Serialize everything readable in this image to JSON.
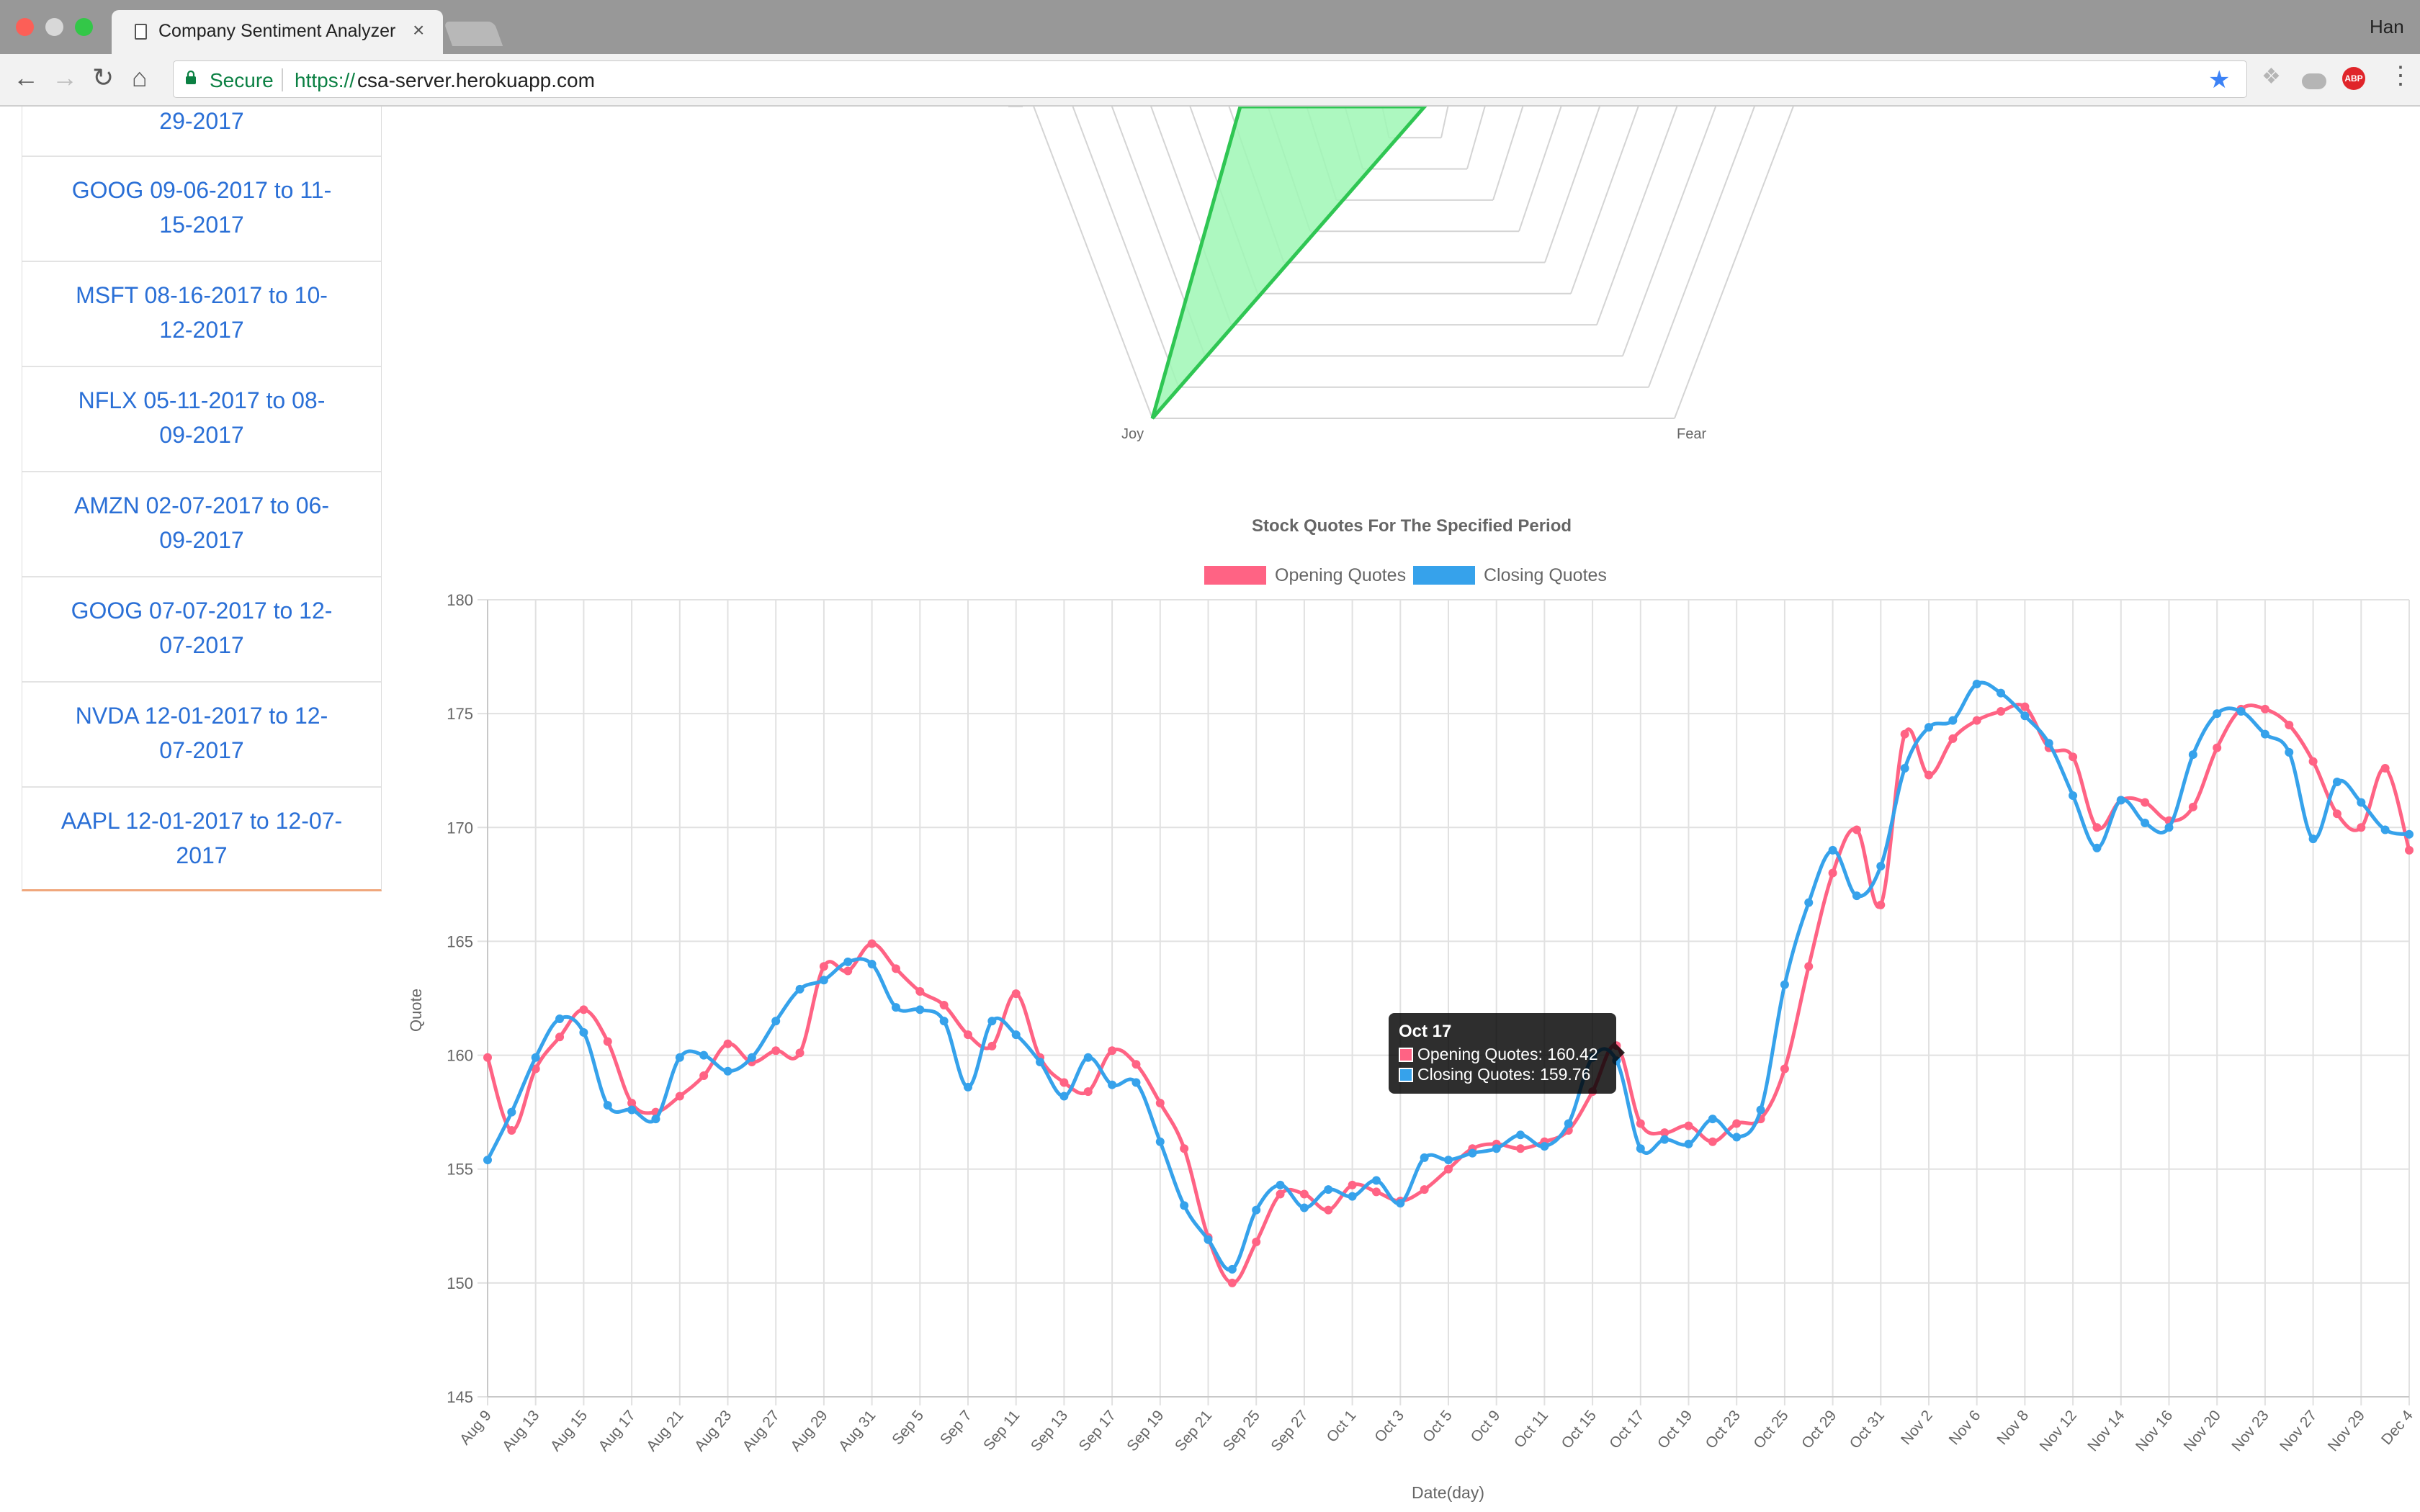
{
  "browser": {
    "tab_title": "Company Sentiment Analyzer",
    "tab_close": "×",
    "user": "Han",
    "secure_label": "Secure",
    "url_scheme": "https://",
    "url_host": "csa-server.herokuapp.com",
    "ext_abp_label": "ABP"
  },
  "sidebar": {
    "items": [
      {
        "line1": "29-2017",
        "line2": ""
      },
      {
        "line1": "GOOG 09-06-2017 to 11-",
        "line2": "15-2017"
      },
      {
        "line1": "MSFT 08-16-2017 to 10-",
        "line2": "12-2017"
      },
      {
        "line1": "NFLX 05-11-2017 to 08-",
        "line2": "09-2017"
      },
      {
        "line1": "AMZN 02-07-2017 to 06-",
        "line2": "09-2017"
      },
      {
        "line1": "GOOG 07-07-2017 to 12-",
        "line2": "07-2017"
      },
      {
        "line1": "NVDA 12-01-2017 to 12-",
        "line2": "07-2017"
      },
      {
        "line1": "AAPL 12-01-2017 to 12-07-",
        "line2": "2017"
      }
    ]
  },
  "radar": {
    "labels": [
      "Joy",
      "Fear"
    ],
    "colors": {
      "fill": "#9ff7b5",
      "stroke": "#2fc653"
    }
  },
  "chart_data": {
    "type": "line",
    "title": "Stock Quotes For The Specified Period",
    "xlabel": "Date(day)",
    "ylabel": "Quote",
    "ylim": [
      145,
      180
    ],
    "yticks": [
      145,
      150,
      155,
      160,
      165,
      170,
      175,
      180
    ],
    "grid": true,
    "legend_position": "top",
    "x_tick_labels": [
      "Aug 9",
      "Aug 13",
      "Aug 15",
      "Aug 17",
      "Aug 21",
      "Aug 23",
      "Aug 27",
      "Aug 29",
      "Aug 31",
      "Sep 5",
      "Sep 7",
      "Sep 11",
      "Sep 13",
      "Sep 17",
      "Sep 19",
      "Sep 21",
      "Sep 25",
      "Sep 27",
      "Oct 1",
      "Oct 3",
      "Oct 5",
      "Oct 9",
      "Oct 11",
      "Oct 15",
      "Oct 17",
      "Oct 19",
      "Oct 23",
      "Oct 25",
      "Oct 29",
      "Oct 31",
      "Nov 2",
      "Nov 6",
      "Nov 8",
      "Nov 12",
      "Nov 14",
      "Nov 16",
      "Nov 20",
      "Nov 23",
      "Nov 27",
      "Nov 29",
      "Dec 4"
    ],
    "series": [
      {
        "name": "Opening Quotes",
        "color": "#ff6384",
        "values": [
          159.9,
          156.7,
          159.4,
          160.8,
          162.0,
          160.6,
          157.9,
          157.5,
          158.2,
          159.1,
          160.5,
          159.7,
          160.2,
          160.1,
          163.9,
          163.7,
          164.9,
          163.8,
          162.8,
          162.2,
          160.9,
          160.4,
          162.7,
          159.9,
          158.8,
          158.4,
          160.2,
          159.6,
          157.9,
          155.9,
          152.0,
          150.0,
          151.8,
          153.9,
          153.9,
          153.2,
          154.3,
          154.0,
          153.6,
          154.1,
          155.0,
          155.9,
          156.1,
          155.9,
          156.2,
          156.7,
          158.4,
          160.42,
          157.0,
          156.6,
          156.9,
          156.2,
          157.0,
          157.2,
          159.4,
          163.9,
          168.0,
          169.9,
          166.6,
          174.1,
          172.3,
          173.9,
          174.7,
          175.1,
          175.3,
          173.5,
          173.1,
          170.0,
          171.2,
          171.1,
          170.3,
          170.9,
          173.5,
          175.2,
          175.2,
          174.5,
          172.9,
          170.6,
          170.0,
          172.6,
          169.0
        ]
      },
      {
        "name": "Closing Quotes",
        "color": "#36a2eb",
        "values": [
          155.4,
          157.5,
          159.9,
          161.6,
          161.0,
          157.8,
          157.6,
          157.2,
          159.9,
          160.0,
          159.3,
          159.9,
          161.5,
          162.9,
          163.3,
          164.1,
          164.0,
          162.1,
          162.0,
          161.5,
          158.6,
          161.5,
          160.9,
          159.7,
          158.2,
          159.9,
          158.7,
          158.8,
          156.2,
          153.4,
          151.9,
          150.6,
          153.2,
          154.3,
          153.3,
          154.1,
          153.8,
          154.5,
          153.5,
          155.5,
          155.4,
          155.7,
          155.9,
          156.5,
          156.0,
          157.0,
          159.9,
          159.76,
          155.9,
          156.3,
          156.1,
          157.2,
          156.4,
          157.6,
          163.1,
          166.7,
          169.0,
          167.0,
          168.3,
          172.6,
          174.4,
          174.7,
          176.3,
          175.9,
          174.9,
          173.7,
          171.4,
          169.1,
          171.2,
          170.2,
          170.0,
          173.2,
          175.0,
          175.1,
          174.1,
          173.3,
          169.5,
          172.0,
          171.1,
          169.9,
          169.7
        ]
      }
    ],
    "tooltip": {
      "title": "Oct 17",
      "rows": [
        "Opening Quotes: 160.42",
        "Closing Quotes: 159.76"
      ]
    }
  }
}
